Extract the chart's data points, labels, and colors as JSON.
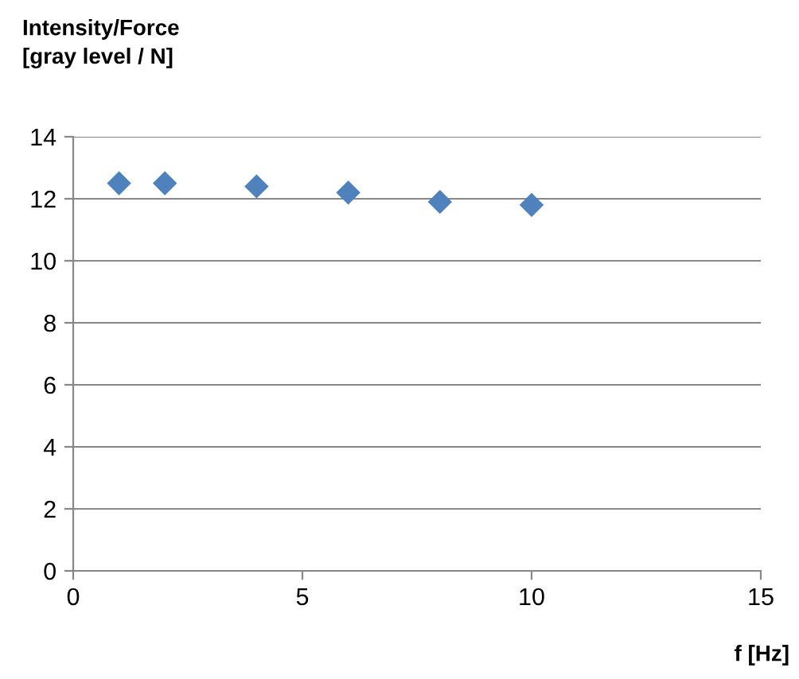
{
  "chart_data": {
    "type": "scatter",
    "ylabel": "Intensity/Force\n[gray level / N]",
    "xlabel": "f [Hz]",
    "x": [
      1,
      2,
      4,
      6,
      8,
      10
    ],
    "values": [
      12.5,
      12.5,
      12.4,
      12.2,
      11.9,
      11.8
    ],
    "color": "#4f81bd",
    "marker": "diamond",
    "xlim": [
      0,
      15
    ],
    "xticks": [
      0,
      5,
      10,
      15
    ],
    "ylim": [
      0,
      14
    ],
    "yticks": [
      0,
      2,
      4,
      6,
      8,
      10,
      12,
      14
    ],
    "grid": "y"
  }
}
